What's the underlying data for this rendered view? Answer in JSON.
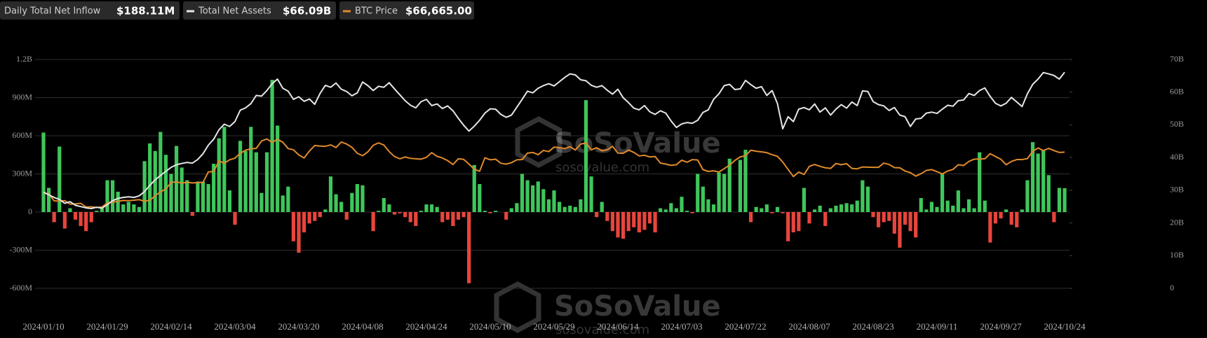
{
  "chart_data": {
    "type": "bar-line",
    "legend_values": [
      "$188.11M",
      "$66.09B",
      "$66,665.00"
    ],
    "watermark": {
      "brand": "SoSoValue",
      "url": "sosovalue.com"
    },
    "grid": true,
    "ylim": [
      -600000000.0,
      1200000000.0
    ],
    "yticks": [
      {
        "value": -600000000.0,
        "label": "-600M"
      },
      {
        "value": -300000000.0,
        "label": "-300M"
      },
      0,
      {
        "value": 300000000.0,
        "label": "300M"
      },
      {
        "value": 600000000.0,
        "label": "600M"
      },
      {
        "value": 900000000.0,
        "label": "900M"
      },
      {
        "value": 1200000000.0,
        "label": "1.2B"
      }
    ],
    "y2lim": [
      0,
      70000000000.0
    ],
    "y2ticks": [
      0,
      {
        "value": 10000000000.0,
        "label": "10B"
      },
      {
        "value": 20000000000.0,
        "label": "20B"
      },
      {
        "value": 30000000000.0,
        "label": "30B"
      },
      {
        "value": 40000000000.0,
        "label": "40B"
      },
      {
        "value": 50000000000.0,
        "label": "50B"
      },
      {
        "value": 60000000000.0,
        "label": "60B"
      },
      {
        "value": 70000000000.0,
        "label": "70B"
      }
    ],
    "y3lim": [
      0,
      112000
    ],
    "categories": [
      "2024/01/10",
      null,
      null,
      null,
      null,
      null,
      null,
      null,
      null,
      null,
      null,
      null,
      "2024/01/29",
      null,
      null,
      null,
      null,
      null,
      null,
      null,
      null,
      null,
      null,
      null,
      "2024/02/14",
      null,
      null,
      null,
      null,
      null,
      null,
      null,
      null,
      null,
      null,
      null,
      "2024/03/04",
      null,
      null,
      null,
      null,
      null,
      null,
      null,
      null,
      null,
      null,
      null,
      "2024/03/20",
      null,
      null,
      null,
      null,
      null,
      null,
      null,
      null,
      null,
      null,
      null,
      "2024/04/08",
      null,
      null,
      null,
      null,
      null,
      null,
      null,
      null,
      null,
      null,
      null,
      "2024/04/24",
      null,
      null,
      null,
      null,
      null,
      null,
      null,
      null,
      null,
      null,
      null,
      "2024/05/10",
      null,
      null,
      null,
      null,
      null,
      null,
      null,
      null,
      null,
      null,
      null,
      "2024/05/29",
      null,
      null,
      null,
      null,
      null,
      null,
      null,
      null,
      null,
      null,
      null,
      "2024/06/14",
      null,
      null,
      null,
      null,
      null,
      null,
      null,
      null,
      null,
      null,
      null,
      "2024/07/03",
      null,
      null,
      null,
      null,
      null,
      null,
      null,
      null,
      null,
      null,
      null,
      "2024/07/22",
      null,
      null,
      null,
      null,
      null,
      null,
      null,
      null,
      null,
      null,
      null,
      "2024/08/07",
      null,
      null,
      null,
      null,
      null,
      null,
      null,
      null,
      null,
      null,
      null,
      "2024/08/23",
      null,
      null,
      null,
      null,
      null,
      null,
      null,
      null,
      null,
      null,
      null,
      "2024/09/11",
      null,
      null,
      null,
      null,
      null,
      null,
      null,
      null,
      null,
      null,
      null,
      "2024/09/27",
      null,
      null,
      null,
      null,
      null,
      null,
      null,
      null,
      null,
      null,
      null,
      "2024/10/24"
    ],
    "series": [
      {
        "name": "Daily Total Net Inflow",
        "kind": "bar",
        "color": "#3fc65b",
        "negative_color": "#e8453c",
        "values": [
          625000000.0,
          190000000.0,
          -80000000.0,
          515000000.0,
          -130000000.0,
          30000000.0,
          -60000000.0,
          -110000000.0,
          -150000000.0,
          -80000000.0,
          10000000.0,
          30000000.0,
          250000000.0,
          250000000.0,
          160000000.0,
          60000000.0,
          80000000.0,
          60000000.0,
          40000000.0,
          400000000.0,
          540000000.0,
          480000000.0,
          630000000.0,
          450000000.0,
          300000000.0,
          520000000.0,
          350000000.0,
          250000000.0,
          -30000000.0,
          240000000.0,
          240000000.0,
          220000000.0,
          380000000.0,
          580000000.0,
          670000000.0,
          170000000.0,
          -100000000.0,
          560000000.0,
          480000000.0,
          670000000.0,
          470000000.0,
          150000000.0,
          470000000.0,
          1040000000.0,
          680000000.0,
          130000000.0,
          200000000.0,
          -230000000.0,
          -320000000.0,
          -160000000.0,
          -90000000.0,
          -70000000.0,
          -40000000.0,
          20000000.0,
          280000000.0,
          140000000.0,
          80000000.0,
          -60000000.0,
          150000000.0,
          220000000.0,
          210000000.0,
          0,
          -150000000.0,
          10000000.0,
          110000000.0,
          60000000.0,
          -20000000.0,
          -10000000.0,
          -40000000.0,
          -80000000.0,
          -110000000.0,
          10000000.0,
          60000000.0,
          60000000.0,
          40000000.0,
          -80000000.0,
          -60000000.0,
          -110000000.0,
          -60000000.0,
          -40000000.0,
          -560000000.0,
          370000000.0,
          220000000.0,
          10000000.0,
          -10000000.0,
          10000000.0,
          0,
          -60000000.0,
          30000000.0,
          70000000.0,
          300000000.0,
          250000000.0,
          210000000.0,
          240000000.0,
          180000000.0,
          100000000.0,
          170000000.0,
          80000000.0,
          40000000.0,
          50000000.0,
          40000000.0,
          100000000.0,
          880000000.0,
          280000000.0,
          -40000000.0,
          80000000.0,
          -70000000.0,
          -150000000.0,
          -200000000.0,
          -210000000.0,
          -150000000.0,
          -120000000.0,
          -160000000.0,
          -140000000.0,
          -90000000.0,
          -160000000.0,
          30000000.0,
          20000000.0,
          70000000.0,
          30000000.0,
          120000000.0,
          10000000.0,
          -10000000.0,
          300000000.0,
          200000000.0,
          100000000.0,
          60000000.0,
          310000000.0,
          300000000.0,
          420000000.0,
          0,
          410000000.0,
          490000000.0,
          -80000000.0,
          40000000.0,
          30000000.0,
          60000000.0,
          -10000000.0,
          40000000.0,
          -10000000.0,
          -230000000.0,
          -160000000.0,
          -150000000.0,
          190000000.0,
          -90000000.0,
          20000000.0,
          50000000.0,
          -110000000.0,
          30000000.0,
          50000000.0,
          60000000.0,
          70000000.0,
          60000000.0,
          90000000.0,
          250000000.0,
          200000000.0,
          -40000000.0,
          -120000000.0,
          -80000000.0,
          -70000000.0,
          -170000000.0,
          -280000000.0,
          -100000000.0,
          -150000000.0,
          -200000000.0,
          110000000.0,
          20000000.0,
          80000000.0,
          40000000.0,
          300000000.0,
          90000000.0,
          50000000.0,
          170000000.0,
          30000000.0,
          100000000.0,
          30000000.0,
          470000000.0,
          90000000.0,
          -240000000.0,
          -90000000.0,
          -50000000.0,
          20000000.0,
          -100000000.0,
          -120000000.0,
          20000000.0,
          250000000.0,
          550000000.0,
          460000000.0,
          490000000.0,
          290000000.0,
          -80000000.0,
          190000000.0,
          188110000.0
        ]
      },
      {
        "name": "Total Net Assets",
        "kind": "line",
        "axis": "y2",
        "color": "#e6e6e6",
        "values": [
          29400000000.0,
          28600000000.0,
          27800000000.0,
          27200000000.0,
          26000000000.0,
          26500000000.0,
          25400000000.0,
          25000000000.0,
          24600000000.0,
          24400000000.0,
          24800000000.0,
          24500000000.0,
          25600000000.0,
          26800000000.0,
          27500000000.0,
          27800000000.0,
          28000000000.0,
          27800000000.0,
          28300000000.0,
          29600000000.0,
          31500000000.0,
          33200000000.0,
          34500000000.0,
          35800000000.0,
          37000000000.0,
          37800000000.0,
          38200000000.0,
          38500000000.0,
          38300000000.0,
          39400000000.0,
          41200000000.0,
          43800000000.0,
          45600000000.0,
          48500000000.0,
          50200000000.0,
          49500000000.0,
          51000000000.0,
          54500000000.0,
          55200000000.0,
          56500000000.0,
          59000000000.0,
          58800000000.0,
          60500000000.0,
          62600000000.0,
          64000000000.0,
          61200000000.0,
          60300000000.0,
          57800000000.0,
          58600000000.0,
          57200000000.0,
          57900000000.0,
          56300000000.0,
          59600000000.0,
          62100000000.0,
          61500000000.0,
          62800000000.0,
          60900000000.0,
          60200000000.0,
          58900000000.0,
          59800000000.0,
          63100000000.0,
          62000000000.0,
          60500000000.0,
          61800000000.0,
          61500000000.0,
          62900000000.0,
          61000000000.0,
          59200000000.0,
          57400000000.0,
          56000000000.0,
          55200000000.0,
          57100000000.0,
          57800000000.0,
          55900000000.0,
          56400000000.0,
          55000000000.0,
          55800000000.0,
          54300000000.0,
          52000000000.0,
          49900000000.0,
          48100000000.0,
          49600000000.0,
          51400000000.0,
          53600000000.0,
          54900000000.0,
          54800000000.0,
          53200000000.0,
          52300000000.0,
          53000000000.0,
          55400000000.0,
          57800000000.0,
          60300000000.0,
          59800000000.0,
          61200000000.0,
          62000000000.0,
          62600000000.0,
          61900000000.0,
          63200000000.0,
          64500000000.0,
          65600000000.0,
          65300000000.0,
          63800000000.0,
          63500000000.0,
          62100000000.0,
          61500000000.0,
          62000000000.0,
          60600000000.0,
          59400000000.0,
          60900000000.0,
          58300000000.0,
          56800000000.0,
          55100000000.0,
          54600000000.0,
          55900000000.0,
          54000000000.0,
          53200000000.0,
          54300000000.0,
          53600000000.0,
          51200000000.0,
          49200000000.0,
          50300000000.0,
          50700000000.0,
          50500000000.0,
          51400000000.0,
          53800000000.0,
          54600000000.0,
          57800000000.0,
          59500000000.0,
          62000000000.0,
          62400000000.0,
          60800000000.0,
          61000000000.0,
          63600000000.0,
          62300000000.0,
          61200000000.0,
          61700000000.0,
          59000000000.0,
          60500000000.0,
          56500000000.0,
          48800000000.0,
          52500000000.0,
          51000000000.0,
          54800000000.0,
          55300000000.0,
          54600000000.0,
          56400000000.0,
          53900000000.0,
          55200000000.0,
          53000000000.0,
          54800000000.0,
          56200000000.0,
          55100000000.0,
          57000000000.0,
          55900000000.0,
          60400000000.0,
          60200000000.0,
          57100000000.0,
          56200000000.0,
          55800000000.0,
          54400000000.0,
          55300000000.0,
          53000000000.0,
          52500000000.0,
          49500000000.0,
          51800000000.0,
          52000000000.0,
          53600000000.0,
          53900000000.0,
          53500000000.0,
          54800000000.0,
          56000000000.0,
          55700000000.0,
          57400000000.0,
          57600000000.0,
          59600000000.0,
          59000000000.0,
          60500000000.0,
          61300000000.0,
          58700000000.0,
          56600000000.0,
          55800000000.0,
          56600000000.0,
          58400000000.0,
          57000000000.0,
          55600000000.0,
          59500000000.0,
          62400000000.0,
          64000000000.0,
          66000000000.0,
          65600000000.0,
          65100000000.0,
          64000000000.0,
          66090000000.0
        ]
      },
      {
        "name": "BTC Price",
        "kind": "line",
        "axis": "y3",
        "color": "#e08a2c",
        "values": [
          46600,
          46300,
          42800,
          42700,
          42900,
          41200,
          41300,
          41600,
          39800,
          39900,
          39500,
          39800,
          41800,
          42100,
          42600,
          43000,
          42900,
          43100,
          43400,
          42600,
          43100,
          45300,
          47200,
          48600,
          51800,
          52100,
          51500,
          51900,
          51600,
          51700,
          51900,
          57000,
          57100,
          62400,
          61200,
          62900,
          63700,
          66100,
          67600,
          68300,
          68500,
          72100,
          73100,
          71400,
          73000,
          71500,
          68400,
          67800,
          65300,
          63800,
          67200,
          69900,
          69600,
          69500,
          70200,
          68900,
          71600,
          70600,
          69000,
          66100,
          64900,
          66800,
          70000,
          71200,
          70100,
          66900,
          64500,
          63400,
          64300,
          63600,
          63400,
          63200,
          64100,
          66400,
          64600,
          63800,
          62500,
          60600,
          63400,
          63100,
          60800,
          58300,
          57300,
          63900,
          62900,
          63200,
          61200,
          60800,
          61500,
          62900,
          63000,
          66200,
          66500,
          65400,
          67500,
          66900,
          69100,
          68900,
          68400,
          69300,
          67700,
          70600,
          71100,
          67800,
          68800,
          67300,
          67800,
          69500,
          66200,
          66100,
          67700,
          66500,
          64800,
          65100,
          64300,
          64500,
          61300,
          60800,
          60200,
          60500,
          62700,
          61700,
          63000,
          62800,
          58100,
          57200,
          57500,
          56900,
          58600,
          60300,
          62600,
          64300,
          64900,
          67600,
          67100,
          66800,
          66400,
          65400,
          64600,
          61800,
          58200,
          54700,
          56900,
          55700,
          59700,
          60600,
          59700,
          59000,
          58700,
          61100,
          60500,
          61000,
          58700,
          58500,
          59400,
          59300,
          59200,
          59200,
          61300,
          60600,
          59100,
          59000,
          57400,
          56600,
          54900,
          56100,
          57700,
          58100,
          57100,
          56000,
          57400,
          58200,
          60500,
          60100,
          62100,
          63200,
          63300,
          63400,
          65900,
          64500,
          63200,
          60500,
          62100,
          63000,
          63000,
          63500,
          67000,
          68700,
          67400,
          68500,
          67400,
          66500,
          66665
        ]
      }
    ]
  }
}
